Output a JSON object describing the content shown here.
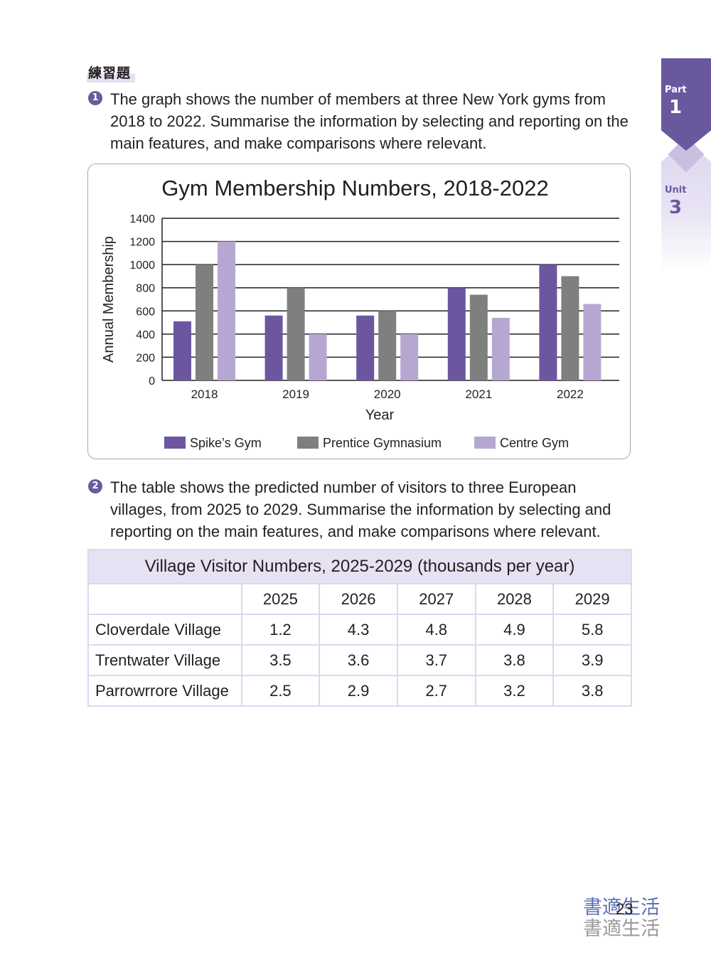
{
  "heading": "練習題",
  "questions": [
    {
      "number": "1",
      "text": "The graph shows the number of members at three New York gyms from 2018 to 2022. Summarise the information by selecting and reporting on the main features, and make comparisons where relevant."
    },
    {
      "number": "2",
      "text": "The table shows the predicted number of visitors to three European villages, from 2025 to 2029. Summarise the information by selecting and reporting on the main features, and make comparisons where relevant."
    }
  ],
  "side_tabs": {
    "part_label": "Part",
    "part_number": "1",
    "unit_label": "Unit",
    "unit_number": "3"
  },
  "chart_data": {
    "type": "bar",
    "title": "Gym Membership Numbers, 2018-2022",
    "xlabel": "Year",
    "ylabel": "Annual Membership",
    "ylim": [
      0,
      1400
    ],
    "yticks": [
      0,
      200,
      400,
      600,
      800,
      1000,
      1200,
      1400
    ],
    "grid": true,
    "legend_position": "bottom",
    "categories": [
      "2018",
      "2019",
      "2020",
      "2021",
      "2022"
    ],
    "series": [
      {
        "name": "Spike’s Gym",
        "color": "#6d56a0",
        "values": [
          510,
          560,
          560,
          800,
          1000
        ]
      },
      {
        "name": "Prentice Gymnasium",
        "color": "#7f7f7f",
        "values": [
          1000,
          800,
          600,
          740,
          900
        ]
      },
      {
        "name": "Centre Gym",
        "color": "#b6a7d2",
        "values": [
          1200,
          400,
          400,
          540,
          660
        ]
      }
    ]
  },
  "table": {
    "title": "Village Visitor Numbers, 2025-2029 (thousands per year)",
    "columns": [
      "2025",
      "2026",
      "2027",
      "2028",
      "2029"
    ],
    "rows": [
      {
        "label": "Cloverdale Village",
        "values": [
          "1.2",
          "4.3",
          "4.8",
          "4.9",
          "5.8"
        ]
      },
      {
        "label": "Trentwater Village",
        "values": [
          "3.5",
          "3.6",
          "3.7",
          "3.8",
          "3.9"
        ]
      },
      {
        "label": "Parrowrrore Village",
        "values": [
          "2.5",
          "2.9",
          "2.7",
          "3.2",
          "3.8"
        ]
      }
    ]
  },
  "footer": {
    "page_number": "23",
    "logo_line1": "書適生活",
    "logo_line2": "書適生活"
  }
}
